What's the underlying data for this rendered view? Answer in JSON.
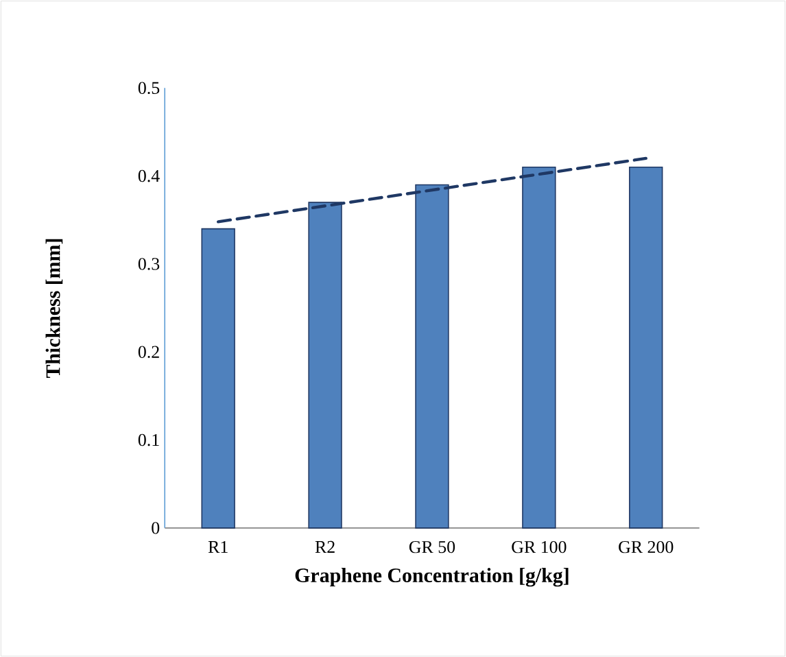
{
  "chart_data": {
    "type": "bar",
    "xlabel": "Graphene Concentration [g/kg]",
    "ylabel": "Thickness [mm]",
    "categories": [
      "R1",
      "R2",
      "GR 50",
      "GR 100",
      "GR 200"
    ],
    "ylim": [
      0,
      0.5
    ],
    "yticks": [
      0,
      0.1,
      0.2,
      0.3,
      0.4,
      0.5
    ],
    "series": [
      {
        "color": "#4f81bd",
        "values": [
          0.34,
          0.37,
          0.39,
          0.41,
          0.41
        ]
      },
      {
        "type": "line",
        "values": [
          0.348,
          0.366,
          0.384,
          0.402,
          0.42
        ],
        "color": "#1f3864",
        "line_style": "dashed",
        "marker": "none"
      }
    ]
  }
}
